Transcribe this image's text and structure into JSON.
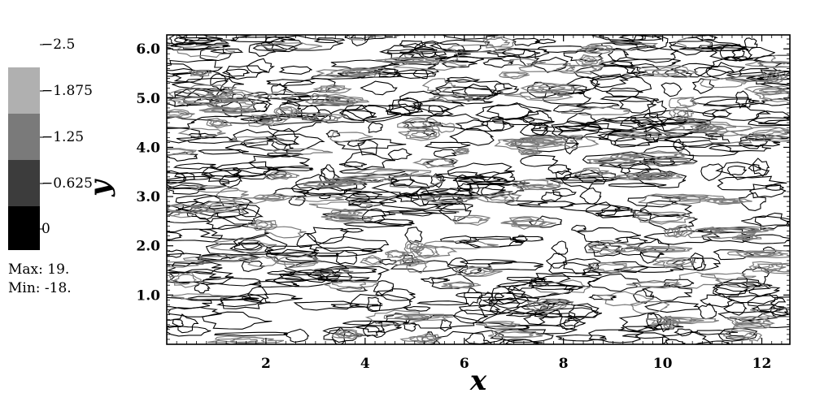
{
  "chart_data": {
    "type": "contour",
    "xlabel": "x",
    "ylabel": "y",
    "xlim": [
      0,
      12.566
    ],
    "ylim": [
      0,
      6.283
    ],
    "xticks": [
      2,
      4,
      6,
      8,
      10,
      12
    ],
    "yticks": [
      1.0,
      2.0,
      3.0,
      4.0,
      5.0,
      6.0
    ],
    "xtick_labels": [
      "2",
      "4",
      "6",
      "8",
      "10",
      "12"
    ],
    "ytick_labels": [
      "1.0",
      "2.0",
      "3.0",
      "4.0",
      "5.0",
      "6.0"
    ],
    "colorbar": {
      "levels": [
        -2.5,
        -1.875,
        -1.25,
        -0.625,
        0
      ],
      "level_labels": [
        "-2.5",
        "-1.875",
        "-1.25",
        "-0.625",
        "0"
      ],
      "shades": [
        "#b0b0b0",
        "#7a7a7a",
        "#3c3c3c",
        "#000000"
      ]
    },
    "stats": {
      "max_label": "Max:",
      "max_value": "19.",
      "min_label": "Min:",
      "min_value": "-18."
    },
    "contour_style": {
      "zero_line_color": "#000000",
      "negative_line_color": "#7a7a7a"
    },
    "grid": false
  }
}
